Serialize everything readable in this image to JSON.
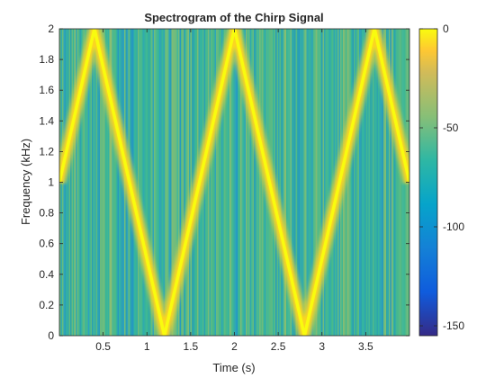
{
  "chart_data": {
    "type": "heatmap",
    "title": "Spectrogram of the Chirp Signal",
    "xlabel": "Time (s)",
    "ylabel": "Frequency (kHz)",
    "xlim": [
      0,
      4
    ],
    "ylim": [
      0,
      2
    ],
    "xticks": [
      0.5,
      1,
      1.5,
      2,
      2.5,
      3,
      3.5
    ],
    "xtick_labels": [
      "0.5",
      "1",
      "1.5",
      "2",
      "2.5",
      "3",
      "3.5"
    ],
    "yticks": [
      0,
      0.2,
      0.4,
      0.6,
      0.8,
      1,
      1.2,
      1.4,
      1.6,
      1.8,
      2
    ],
    "ytick_labels": [
      "0",
      "0.2",
      "0.4",
      "0.6",
      "0.8",
      "1",
      "1.2",
      "1.4",
      "1.6",
      "1.8",
      "2"
    ],
    "colorbar": {
      "range": [
        -155,
        0
      ],
      "ticks": [
        0,
        -50,
        -100,
        -150
      ],
      "tick_labels": [
        "0",
        "-50",
        "-100",
        "-150"
      ],
      "colormap": "parula"
    },
    "background_level_db": -62,
    "ridge": {
      "level_db": 0,
      "vertices": [
        {
          "t": 0,
          "f": 1.0
        },
        {
          "t": 0.4,
          "f": 2.0
        },
        {
          "t": 1.2,
          "f": 0.0
        },
        {
          "t": 2.0,
          "f": 2.0
        },
        {
          "t": 2.8,
          "f": 0.0
        },
        {
          "t": 3.6,
          "f": 2.0
        },
        {
          "t": 4.0,
          "f": 1.0
        }
      ]
    },
    "grid": false
  }
}
